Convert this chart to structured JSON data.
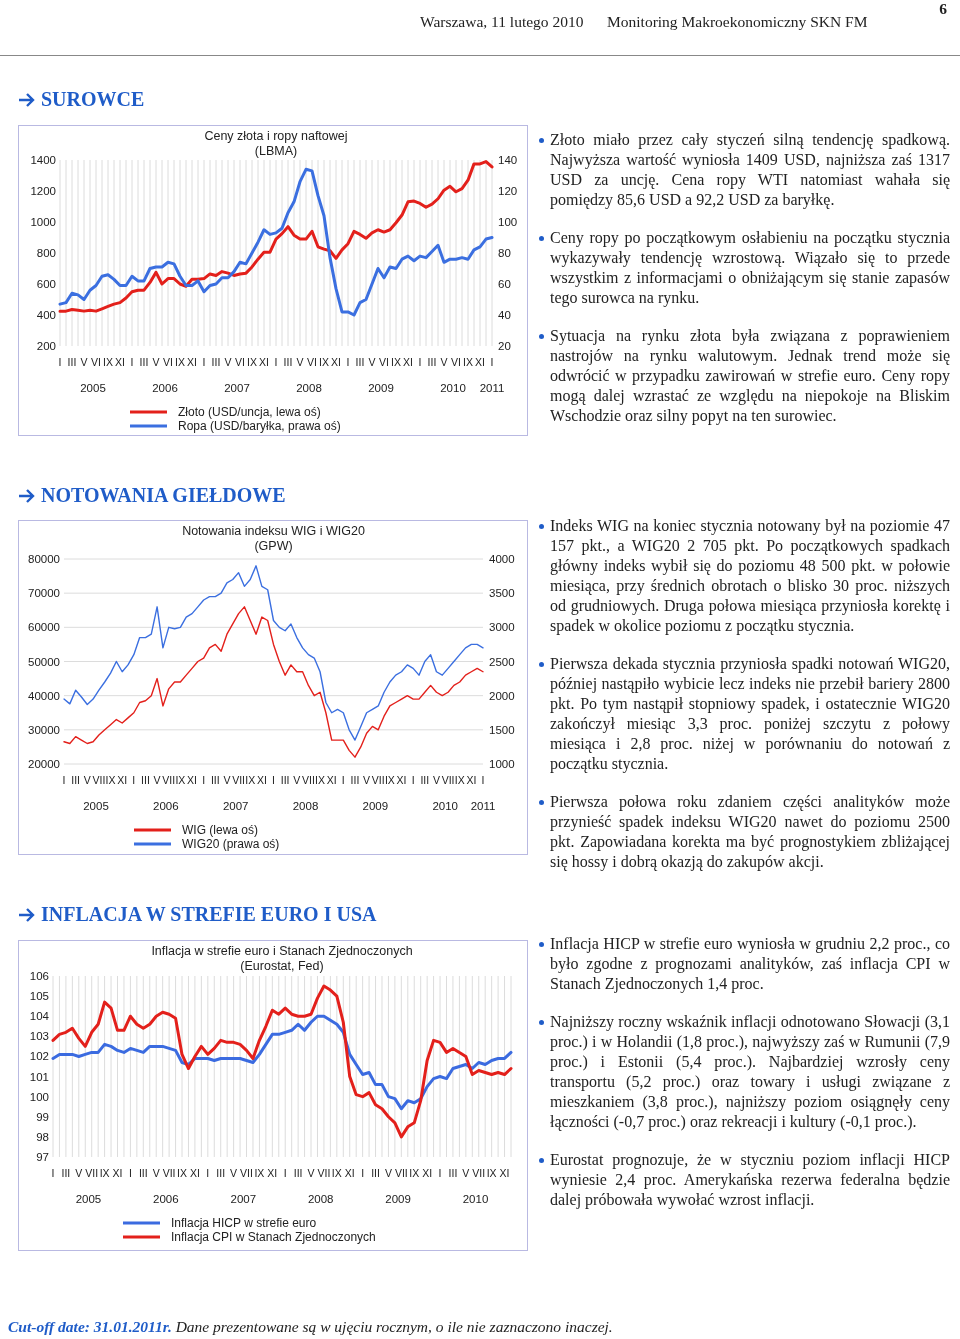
{
  "chart_data": [
    {
      "type": "other",
      "title": "Monitoring Makroekonomiczny SKN FM",
      "subtitle": "Warszawa, 11 lutego 2010",
      "annotations": [
        "6"
      ]
    },
    {
      "type": "other",
      "title": "SUROWCE",
      "annotations": [
        "Złoto miało przez cały styczeń silną tendencję spadkową. Najwyższa wartość wyniosła 1409 USD, najniższa zaś 1317 USD za uncję. Cena ropy WTI natomiast wahała się pomiędzy 85,6 USD a 92,2 USD za baryłkę.",
        "Ceny ropy po początkowym osłabieniu na początku stycznia wykazywały tendencję wzrostową. Wiązało się to przede wszystkim z informacjami o obniżającym się stanie zapasów tego surowca na rynku.",
        "Sytuacja na rynku złota była związana z poprawieniem nastrojów na rynku walutowym. Jednak trend może się odwrócić w przypadku zawirowań w strefie euro. Ceny ropy mogą dalej wzrastać ze względu na niepokoje na Bliskim Wschodzie oraz silny popyt na ten surowiec."
      ]
    },
    {
      "type": "line",
      "title": "Ceny złota i ropy naftowej",
      "subtitle": "(LBMA)",
      "grid": "x",
      "legend": "bottom",
      "categories": [
        "I",
        null,
        "III",
        null,
        "V",
        null,
        "VI",
        null,
        "IX",
        null,
        "XI",
        null,
        "I",
        null,
        "III",
        null,
        "V",
        null,
        "VI",
        null,
        "IX",
        null,
        "XI",
        null,
        "I",
        null,
        "III",
        null,
        "V",
        null,
        "VI",
        null,
        "IX",
        null,
        "XI",
        null,
        "I",
        null,
        "III",
        null,
        "V",
        null,
        "VI",
        null,
        "IX",
        null,
        "XI",
        null,
        "I",
        null,
        "III",
        null,
        "V",
        null,
        "VI",
        null,
        "IX",
        null,
        "XI",
        null,
        "I",
        null,
        "III",
        null,
        "V",
        null,
        "VI",
        null,
        "IX",
        null,
        "XI",
        null,
        "I"
      ],
      "annotations": [
        "2005",
        "2006",
        "2007",
        "2008",
        "2009",
        "2010",
        "2011"
      ],
      "ylim": [
        200,
        1400
      ],
      "yticks": [
        200,
        400,
        600,
        800,
        1000,
        1200,
        1400
      ],
      "y2lim": [
        20,
        140
      ],
      "y2ticks": [
        20,
        40,
        60,
        80,
        100,
        120,
        140
      ],
      "series": [
        {
          "name": "Złoto (USD/uncja, lewa oś)",
          "color": "#e3201b",
          "values": [
            425,
            425,
            435,
            430,
            425,
            430,
            425,
            440,
            455,
            470,
            480,
            510,
            550,
            560,
            560,
            610,
            675,
            600,
            635,
            635,
            600,
            585,
            630,
            630,
            635,
            665,
            655,
            680,
            670,
            655,
            665,
            670,
            710,
            760,
            805,
            805,
            890,
            925,
            970,
            915,
            890,
            890,
            940,
            840,
            825,
            815,
            765,
            820,
            860,
            940,
            920,
            895,
            930,
            950,
            935,
            950,
            995,
            1045,
            1130,
            1135,
            1120,
            1095,
            1115,
            1150,
            1205,
            1230,
            1195,
            1215,
            1270,
            1375,
            1375,
            1390,
            1355
          ]
        },
        {
          "name": "Ropa (USD/baryłka, prawa oś)",
          "color": "#3b6fe0",
          "axis": "y2",
          "values": [
            47,
            48,
            54,
            53,
            50,
            56,
            59,
            65,
            66,
            63,
            59,
            59,
            65,
            62,
            62,
            70,
            71,
            71,
            74,
            73,
            65,
            59,
            59,
            62,
            55,
            59,
            60,
            64,
            64,
            68,
            74,
            73,
            80,
            87,
            95,
            92,
            93,
            96,
            106,
            113,
            126,
            134,
            133,
            117,
            104,
            77,
            57,
            42,
            42,
            40,
            48,
            50,
            60,
            70,
            64,
            71,
            70,
            76,
            78,
            75,
            78,
            77,
            81,
            85,
            74,
            76,
            76,
            77,
            76,
            82,
            84,
            89,
            90
          ]
        }
      ]
    },
    {
      "type": "other",
      "title": "NOTOWANIA GIEŁDOWE",
      "annotations": [
        "Indeks WIG na koniec stycznia notowany był na poziomie 47 157 pkt., a WIG20 2 705 pkt. Po początkowych spadkach  główny indeks wybił się do poziomu 48 500 pkt. w połowie miesiąca, przy średnich obrotach o blisko 30 proc. niższych od grudniowych. Druga połowa miesiąca przyniosła korektę i spadek w okolice poziomu z początku stycznia.",
        "Pierwsza dekada stycznia przyniosła spadki notowań WIG20, później nastąpiło wybicie lecz indeks nie przebił bariery 2800 pkt. Po tym nastąpił stopniowy spadek, i ostatecznie WIG20 zakończył miesiąc 3,3 proc. poniżej szczytu z połowy miesiąca i 2,8 proc. niżej w porównaniu do notowań z początku stycznia.",
        "Pierwsza połowa roku zdaniem części analityków może przynieść spadek indeksu WIG20 nawet do poziomu 2500 pkt. Zapowiadana korekta ma być prognostykiem zbliżającej się hossy i dobrą okazją do zakupów akcji."
      ]
    },
    {
      "type": "line",
      "title": "Notowania indeksu WIG i WIG20",
      "subtitle": "(GPW)",
      "grid": "y",
      "legend": "bottom",
      "categories": [
        "I",
        null,
        "III",
        null,
        "V",
        null,
        "VII",
        null,
        "IX",
        null,
        "XI",
        null,
        "I",
        null,
        "III",
        null,
        "V",
        null,
        "VII",
        null,
        "IX",
        null,
        "XI",
        null,
        "I",
        null,
        "III",
        null,
        "V",
        null,
        "VII",
        null,
        "IX",
        null,
        "XI",
        null,
        "I",
        null,
        "III",
        null,
        "V",
        null,
        "VII",
        null,
        "IX",
        null,
        "XI",
        null,
        "I",
        null,
        "III",
        null,
        "V",
        null,
        "VII",
        null,
        "IX",
        null,
        "XI",
        null,
        "I",
        null,
        "III",
        null,
        "V",
        null,
        "VII",
        null,
        "IX",
        null,
        "XI",
        null,
        "I"
      ],
      "annotations": [
        "2005",
        "2006",
        "2007",
        "2008",
        "2009",
        "2010",
        "2011"
      ],
      "ylim": [
        20000,
        80000
      ],
      "yticks": [
        20000,
        30000,
        40000,
        50000,
        60000,
        70000,
        80000
      ],
      "y2lim": [
        1000,
        4000
      ],
      "y2ticks": [
        1000,
        1500,
        2000,
        2500,
        3000,
        3500,
        4000
      ],
      "series": [
        {
          "name": "WIG (lewa oś)",
          "color": "#e3201b",
          "values": [
            26500,
            26000,
            28000,
            27000,
            26000,
            26500,
            28500,
            30000,
            31500,
            33000,
            32000,
            33500,
            35000,
            38000,
            38500,
            40000,
            45000,
            37000,
            42000,
            44000,
            44000,
            46000,
            48000,
            50000,
            51000,
            54000,
            55000,
            53000,
            58000,
            61000,
            64000,
            66000,
            62000,
            58000,
            63000,
            62000,
            55000,
            50000,
            46000,
            49000,
            47000,
            47000,
            43000,
            40000,
            41000,
            35000,
            27000,
            27000,
            27000,
            24000,
            22000,
            25000,
            29000,
            31000,
            30000,
            34000,
            37000,
            38000,
            39000,
            40000,
            39000,
            39000,
            41000,
            43000,
            41000,
            40000,
            41000,
            43000,
            44000,
            46000,
            47000,
            48000,
            47000
          ]
        },
        {
          "name": "WIG20 (prawa oś)",
          "color": "#3b6fe0",
          "axis": "y2",
          "values": [
            1950,
            1880,
            2080,
            1980,
            1870,
            1950,
            2080,
            2200,
            2330,
            2500,
            2350,
            2450,
            2600,
            2850,
            2850,
            2900,
            3300,
            2700,
            3000,
            2980,
            3000,
            3150,
            3200,
            3300,
            3400,
            3450,
            3450,
            3500,
            3650,
            3700,
            3800,
            3600,
            3700,
            3900,
            3600,
            3550,
            3100,
            3000,
            2950,
            3050,
            2850,
            2700,
            2600,
            2550,
            2350,
            1900,
            1750,
            1800,
            1750,
            1500,
            1350,
            1550,
            1750,
            1800,
            1850,
            2050,
            2200,
            2300,
            2350,
            2450,
            2400,
            2300,
            2500,
            2600,
            2350,
            2300,
            2400,
            2500,
            2600,
            2700,
            2750,
            2750,
            2700
          ]
        }
      ]
    },
    {
      "type": "other",
      "title": "INFLACJA W STREFIE EURO I USA",
      "annotations": [
        "Inflacja HICP w strefie euro wyniosła w grudniu 2,2 proc., co było zgodne z prognozami analityków, zaś inflacja CPI w Stanach Zjednoczonych 1,4 proc.",
        "Najniższy roczny wskaźnik inflacji odnotowano Słowacji (3,1 proc.) i w Holandii (1,8 proc.), najwyższy zaś w Rumunii (7,9 proc.) i Estonii (5,4 proc.). Najbardziej wzrosły ceny transportu (5,2 proc.) oraz towary i usługi związane z mieszkaniem (3,8 proc.), najniższy poziom osiągnęły ceny łączności (-0,7 proc.) oraz rekreacji i kultury (-0,1 proc.).",
        "Eurostat prognozuje, że w styczniu poziom inflacji HICP wyniesie 2,4 proc. Amerykańska rezerwa federalna będzie dalej próbowała wywołać wzrost inflacji."
      ]
    },
    {
      "type": "line",
      "title": "Inflacja w strefie euro i Stanach Zjednoczonych",
      "subtitle": "(Eurostat, Fed)",
      "grid": "x",
      "legend": "bottom",
      "categories": [
        "I",
        null,
        "III",
        null,
        "V",
        null,
        "VII",
        null,
        "IX",
        null,
        "XI",
        null,
        "I",
        null,
        "III",
        null,
        "V",
        null,
        "VII",
        null,
        "IX",
        null,
        "XI",
        null,
        "I",
        null,
        "III",
        null,
        "V",
        null,
        "VII",
        null,
        "IX",
        null,
        "XI",
        null,
        "I",
        null,
        "III",
        null,
        "V",
        null,
        "VII",
        null,
        "IX",
        null,
        "XI",
        null,
        "I",
        null,
        "III",
        null,
        "V",
        null,
        "VII",
        null,
        "IX",
        null,
        "XI",
        null,
        "I",
        null,
        "III",
        null,
        "V",
        null,
        "VII",
        null,
        "IX",
        null,
        "XI",
        null
      ],
      "annotations": [
        "2005",
        "2006",
        "2007",
        "2008",
        "2009",
        "2010"
      ],
      "ylim": [
        97,
        106
      ],
      "yticks": [
        97,
        98,
        99,
        100,
        101,
        102,
        103,
        104,
        105,
        106
      ],
      "series": [
        {
          "name": "Inflacja HICP w strefie euro",
          "color": "#3b6be0",
          "values": [
            101.9,
            102.1,
            102.1,
            102.1,
            102.0,
            102.1,
            102.2,
            102.2,
            102.6,
            102.5,
            102.3,
            102.2,
            102.4,
            102.3,
            102.2,
            102.5,
            102.5,
            102.5,
            102.4,
            102.3,
            101.7,
            101.6,
            101.9,
            101.9,
            101.9,
            101.8,
            101.9,
            101.9,
            101.9,
            101.9,
            101.8,
            101.7,
            102.1,
            102.6,
            103.1,
            103.1,
            103.2,
            103.3,
            103.6,
            103.3,
            103.7,
            104.0,
            104.0,
            103.8,
            103.6,
            103.2,
            102.1,
            101.6,
            101.1,
            101.2,
            100.6,
            100.6,
            100.0,
            99.9,
            99.4,
            99.8,
            99.7,
            99.9,
            100.5,
            100.9,
            101.0,
            100.9,
            101.4,
            101.5,
            101.6,
            101.4,
            101.7,
            101.6,
            101.8,
            101.9,
            101.9,
            102.2
          ]
        },
        {
          "name": "Inflacja CPI w Stanach Zjednoczonych",
          "color": "#e3201b",
          "values": [
            102.8,
            103.1,
            103.2,
            103.4,
            102.9,
            102.5,
            103.2,
            103.6,
            104.7,
            104.4,
            103.3,
            103.3,
            104.0,
            103.6,
            103.4,
            103.6,
            104.0,
            104.2,
            104.1,
            103.9,
            102.1,
            101.4,
            102.0,
            102.5,
            102.1,
            102.4,
            102.8,
            102.7,
            102.7,
            102.6,
            102.3,
            101.9,
            102.8,
            103.5,
            104.3,
            104.1,
            104.4,
            104.1,
            104.0,
            104.0,
            104.1,
            104.9,
            105.5,
            105.3,
            105.0,
            103.7,
            101.0,
            100.1,
            100.0,
            100.2,
            99.6,
            99.4,
            99.0,
            98.7,
            98.0,
            98.5,
            98.7,
            99.8,
            101.8,
            102.8,
            102.7,
            102.2,
            102.4,
            102.2,
            102.0,
            101.1,
            101.3,
            101.2,
            101.1,
            101.2,
            101.1,
            101.4
          ]
        }
      ]
    },
    {
      "type": "other",
      "annotations": [
        "Cut-off date: 31.01.2011r.",
        "Dane prezentowane są w ujęciu rocznym, o ile nie zaznaczono inaczej."
      ]
    }
  ]
}
